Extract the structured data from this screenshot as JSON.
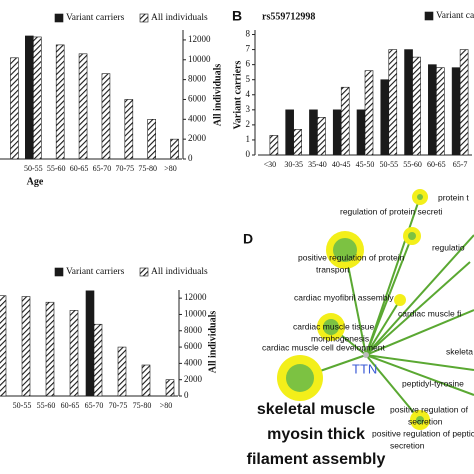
{
  "chart_data": [
    {
      "type": "bar",
      "x_label": "Age",
      "y2_label": "All individuals",
      "categories": [
        null,
        "50-55",
        "55-60",
        "60-65",
        "65-70",
        "70-75",
        "75-80",
        ">80"
      ],
      "series": [
        {
          "name": "Variant carriers",
          "color": "#1a1a1a",
          "axis": "y2",
          "values": [
            null,
            12400,
            null,
            null,
            null,
            null,
            null,
            null
          ]
        },
        {
          "name": "All individuals",
          "color": "#1a1a1a",
          "pattern": "hatch",
          "axis": "y2",
          "values": [
            10200,
            12300,
            11500,
            10600,
            8600,
            6000,
            4000,
            2000
          ]
        }
      ],
      "y2lim": [
        0,
        13000
      ],
      "y2ticks": [
        0,
        2000,
        4000,
        6000,
        8000,
        10000,
        12000
      ]
    },
    {
      "type": "bar",
      "panel": "B",
      "title": "rs559712998",
      "y_label": "Variant carriers",
      "categories": [
        "<30",
        "30-35",
        "35-40",
        "40-45",
        "45-50",
        "50-55",
        "55-60",
        "60-65",
        "65-7"
      ],
      "series": [
        {
          "name": "Variant ca",
          "color": "#1a1a1a",
          "values": [
            0,
            3,
            3,
            3,
            3,
            5,
            7,
            6,
            5.8
          ]
        },
        {
          "color": "#1a1a1a",
          "pattern": "hatch",
          "values": [
            1.3,
            1.7,
            2.5,
            4.5,
            5.6,
            7,
            6.5,
            5.8,
            7
          ]
        }
      ],
      "ylim": [
        0,
        8.3
      ],
      "yticks": [
        0,
        1,
        2,
        3,
        4,
        5,
        6,
        7,
        8
      ]
    },
    {
      "type": "bar",
      "y2_label": "All individuals",
      "categories": [
        null,
        "50-55",
        "55-60",
        "60-65",
        "65-70",
        "70-75",
        "75-80",
        ">80"
      ],
      "series": [
        {
          "name": "Variant carriers",
          "color": "#1a1a1a",
          "axis": "y2",
          "values": [
            null,
            null,
            null,
            null,
            12900,
            null,
            null,
            null
          ]
        },
        {
          "name": "All individuals",
          "color": "#1a1a1a",
          "pattern": "hatch",
          "axis": "y2",
          "values": [
            12300,
            12200,
            11500,
            10500,
            8800,
            6000,
            3800,
            2000
          ]
        }
      ],
      "y2lim": [
        0,
        13000
      ],
      "y2ticks": [
        0,
        2000,
        4000,
        6000,
        8000,
        10000,
        12000
      ]
    }
  ],
  "network": {
    "panel": "D",
    "hub": "TTN",
    "labels": [
      [
        "protein t"
      ],
      [
        "regulation of protein secreti"
      ],
      [
        "positive regulation of protein",
        "transport"
      ],
      [
        "regulatio"
      ],
      [
        "cardiac myofibril assembly"
      ],
      [
        "cardiac muscle tissue",
        "morphogenesis"
      ],
      [
        "cardiac muscle fi"
      ],
      [
        "cardiac muscle cell development"
      ],
      [
        "skeleta"
      ],
      [
        "peptidyl-tyrosine"
      ],
      [
        "positive regulation of",
        "secretion"
      ],
      [
        "positive regulation of peptic",
        "secretion"
      ]
    ],
    "highlight": [
      "skeletal muscle",
      "myosin thick",
      "filament assembly"
    ]
  }
}
